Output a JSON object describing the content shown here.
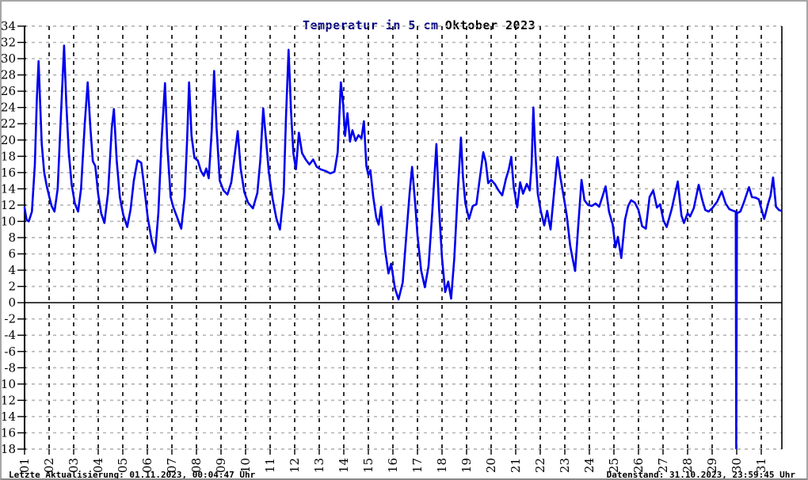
{
  "title": {
    "part1": "Temperatur in 5 cm",
    "part2": "Oktober 2023"
  },
  "footer": {
    "left": "Letzte Aktualisierung: 01.11.2023, 00:04:47 Uhr",
    "right": "Datenstand: 31.10.2023, 23:59:45 Uhr"
  },
  "colors": {
    "line": "#0000ee",
    "title_measure": "#000080",
    "title_month": "#000000",
    "h_grid": "#b8b8b8",
    "v_grid": "#000000",
    "axis": "#000000"
  },
  "chart_data": {
    "type": "line",
    "title": "Temperatur in 5 cm Oktober 2023",
    "xlabel": "",
    "ylabel": "",
    "unit": "°C",
    "ylim": [
      -18,
      34
    ],
    "xlim": [
      1,
      31.84
    ],
    "y_tick_step": 2,
    "grid": true,
    "legend": false,
    "y_ticks": [
      34,
      32,
      30,
      28,
      26,
      24,
      22,
      20,
      18,
      16,
      14,
      12,
      10,
      8,
      6,
      4,
      2,
      0,
      -2,
      -4,
      -6,
      -8,
      -10,
      -12,
      -14,
      -16,
      -18
    ],
    "x_ticks": [
      "01",
      "02",
      "03",
      "04",
      "05",
      "06",
      "07",
      "08",
      "09",
      "10",
      "11",
      "12",
      "13",
      "14",
      "15",
      "16",
      "17",
      "18",
      "19",
      "20",
      "21",
      "22",
      "23",
      "24",
      "25",
      "26",
      "27",
      "28",
      "29",
      "30",
      "31"
    ],
    "series": [
      {
        "name": "Temperatur in 5 cm",
        "points": [
          [
            1.0,
            11.7
          ],
          [
            1.08,
            10.2
          ],
          [
            1.17,
            10.0
          ],
          [
            1.3,
            11.2
          ],
          [
            1.42,
            17.0
          ],
          [
            1.5,
            25.0
          ],
          [
            1.57,
            29.7
          ],
          [
            1.63,
            25.0
          ],
          [
            1.7,
            19.5
          ],
          [
            1.8,
            16.0
          ],
          [
            1.9,
            14.4
          ],
          [
            2.0,
            13.1
          ],
          [
            2.1,
            11.9
          ],
          [
            2.22,
            11.2
          ],
          [
            2.35,
            14.0
          ],
          [
            2.48,
            23.0
          ],
          [
            2.61,
            31.6
          ],
          [
            2.7,
            24.5
          ],
          [
            2.8,
            18.5
          ],
          [
            2.92,
            14.5
          ],
          [
            3.05,
            12.2
          ],
          [
            3.18,
            11.2
          ],
          [
            3.3,
            14.0
          ],
          [
            3.45,
            22.0
          ],
          [
            3.57,
            27.1
          ],
          [
            3.68,
            21.5
          ],
          [
            3.78,
            17.4
          ],
          [
            3.88,
            16.8
          ],
          [
            4.0,
            13.3
          ],
          [
            4.12,
            11.0
          ],
          [
            4.25,
            9.8
          ],
          [
            4.4,
            13.5
          ],
          [
            4.55,
            21.5
          ],
          [
            4.64,
            23.8
          ],
          [
            4.75,
            17.5
          ],
          [
            4.88,
            13.0
          ],
          [
            5.02,
            10.8
          ],
          [
            5.18,
            9.3
          ],
          [
            5.32,
            11.5
          ],
          [
            5.45,
            15.0
          ],
          [
            5.6,
            17.5
          ],
          [
            5.75,
            17.2
          ],
          [
            5.88,
            14.0
          ],
          [
            6.02,
            10.4
          ],
          [
            6.18,
            7.6
          ],
          [
            6.32,
            6.2
          ],
          [
            6.45,
            11.0
          ],
          [
            6.58,
            20.0
          ],
          [
            6.72,
            27.0
          ],
          [
            6.82,
            19.0
          ],
          [
            6.95,
            13.0
          ],
          [
            7.05,
            11.8
          ],
          [
            7.2,
            10.6
          ],
          [
            7.38,
            9.1
          ],
          [
            7.52,
            13.0
          ],
          [
            7.62,
            20.0
          ],
          [
            7.7,
            27.1
          ],
          [
            7.8,
            20.5
          ],
          [
            7.92,
            17.8
          ],
          [
            8.05,
            17.5
          ],
          [
            8.18,
            16.2
          ],
          [
            8.3,
            15.6
          ],
          [
            8.4,
            16.5
          ],
          [
            8.5,
            15.3
          ],
          [
            8.62,
            21.0
          ],
          [
            8.72,
            28.5
          ],
          [
            8.82,
            21.5
          ],
          [
            8.95,
            15.0
          ],
          [
            9.1,
            13.8
          ],
          [
            9.26,
            13.3
          ],
          [
            9.42,
            14.8
          ],
          [
            9.55,
            18.0
          ],
          [
            9.68,
            21.1
          ],
          [
            9.8,
            16.5
          ],
          [
            9.95,
            13.6
          ],
          [
            10.1,
            12.3
          ],
          [
            10.3,
            11.6
          ],
          [
            10.48,
            13.5
          ],
          [
            10.6,
            17.5
          ],
          [
            10.72,
            23.9
          ],
          [
            10.82,
            20.5
          ],
          [
            10.95,
            16.0
          ],
          [
            11.1,
            12.8
          ],
          [
            11.25,
            10.4
          ],
          [
            11.4,
            9.0
          ],
          [
            11.55,
            13.5
          ],
          [
            11.65,
            23.0
          ],
          [
            11.75,
            31.1
          ],
          [
            11.85,
            23.5
          ],
          [
            11.95,
            18.3
          ],
          [
            12.05,
            16.4
          ],
          [
            12.17,
            20.9
          ],
          [
            12.3,
            18.4
          ],
          [
            12.45,
            17.6
          ],
          [
            12.6,
            17.0
          ],
          [
            12.75,
            17.6
          ],
          [
            12.9,
            16.7
          ],
          [
            13.05,
            16.4
          ],
          [
            13.25,
            16.2
          ],
          [
            13.45,
            15.9
          ],
          [
            13.62,
            16.1
          ],
          [
            13.75,
            18.5
          ],
          [
            13.88,
            27.1
          ],
          [
            13.97,
            24.5
          ],
          [
            14.05,
            20.5
          ],
          [
            14.15,
            23.3
          ],
          [
            14.25,
            19.8
          ],
          [
            14.35,
            21.2
          ],
          [
            14.48,
            19.9
          ],
          [
            14.6,
            20.6
          ],
          [
            14.72,
            20.2
          ],
          [
            14.82,
            22.3
          ],
          [
            14.92,
            16.8
          ],
          [
            15.0,
            15.7
          ],
          [
            15.08,
            16.3
          ],
          [
            15.2,
            13.0
          ],
          [
            15.32,
            10.5
          ],
          [
            15.42,
            9.6
          ],
          [
            15.52,
            11.8
          ],
          [
            15.68,
            6.5
          ],
          [
            15.82,
            3.6
          ],
          [
            15.93,
            4.8
          ],
          [
            16.08,
            1.8
          ],
          [
            16.23,
            0.4
          ],
          [
            16.4,
            2.5
          ],
          [
            16.55,
            8.5
          ],
          [
            16.68,
            13.5
          ],
          [
            16.78,
            16.7
          ],
          [
            16.9,
            12.5
          ],
          [
            17.0,
            8.3
          ],
          [
            17.15,
            4.0
          ],
          [
            17.3,
            1.9
          ],
          [
            17.45,
            4.5
          ],
          [
            17.6,
            11.0
          ],
          [
            17.77,
            19.5
          ],
          [
            17.88,
            11.5
          ],
          [
            18.0,
            5.5
          ],
          [
            18.13,
            1.3
          ],
          [
            18.25,
            2.6
          ],
          [
            18.37,
            0.5
          ],
          [
            18.5,
            5.5
          ],
          [
            18.65,
            14.0
          ],
          [
            18.77,
            20.3
          ],
          [
            18.85,
            15.5
          ],
          [
            18.95,
            12.2
          ],
          [
            19.1,
            10.3
          ],
          [
            19.25,
            11.9
          ],
          [
            19.4,
            12.1
          ],
          [
            19.55,
            15.5
          ],
          [
            19.68,
            18.5
          ],
          [
            19.78,
            17.3
          ],
          [
            19.88,
            14.7
          ],
          [
            20.0,
            15.1
          ],
          [
            20.15,
            14.6
          ],
          [
            20.3,
            13.8
          ],
          [
            20.45,
            13.2
          ],
          [
            20.6,
            15.2
          ],
          [
            20.72,
            16.4
          ],
          [
            20.82,
            17.9
          ],
          [
            20.92,
            14.2
          ],
          [
            21.06,
            11.7
          ],
          [
            21.18,
            14.8
          ],
          [
            21.3,
            13.4
          ],
          [
            21.45,
            14.6
          ],
          [
            21.57,
            13.8
          ],
          [
            21.65,
            17.0
          ],
          [
            21.72,
            24.0
          ],
          [
            21.8,
            18.5
          ],
          [
            21.9,
            13.4
          ],
          [
            22.02,
            11.3
          ],
          [
            22.16,
            9.5
          ],
          [
            22.28,
            11.3
          ],
          [
            22.42,
            9.0
          ],
          [
            22.56,
            13.5
          ],
          [
            22.7,
            17.9
          ],
          [
            22.82,
            15.4
          ],
          [
            22.95,
            13.1
          ],
          [
            23.08,
            10.7
          ],
          [
            23.22,
            7.0
          ],
          [
            23.32,
            5.4
          ],
          [
            23.42,
            3.9
          ],
          [
            23.55,
            9.5
          ],
          [
            23.68,
            15.1
          ],
          [
            23.8,
            12.6
          ],
          [
            23.95,
            12.0
          ],
          [
            24.1,
            11.9
          ],
          [
            24.25,
            12.2
          ],
          [
            24.4,
            11.8
          ],
          [
            24.55,
            13.2
          ],
          [
            24.66,
            14.3
          ],
          [
            24.8,
            11.2
          ],
          [
            24.95,
            9.6
          ],
          [
            25.06,
            6.8
          ],
          [
            25.16,
            8.1
          ],
          [
            25.3,
            5.5
          ],
          [
            25.45,
            10.2
          ],
          [
            25.58,
            11.9
          ],
          [
            25.7,
            12.6
          ],
          [
            25.85,
            12.3
          ],
          [
            26.0,
            11.4
          ],
          [
            26.15,
            9.4
          ],
          [
            26.3,
            9.1
          ],
          [
            26.45,
            13.0
          ],
          [
            26.6,
            13.8
          ],
          [
            26.75,
            11.7
          ],
          [
            26.88,
            12.1
          ],
          [
            27.02,
            10.1
          ],
          [
            27.15,
            9.3
          ],
          [
            27.35,
            11.5
          ],
          [
            27.6,
            14.9
          ],
          [
            27.75,
            10.7
          ],
          [
            27.85,
            9.8
          ],
          [
            28.0,
            11.0
          ],
          [
            28.1,
            10.6
          ],
          [
            28.25,
            11.6
          ],
          [
            28.45,
            14.5
          ],
          [
            28.6,
            12.6
          ],
          [
            28.72,
            11.4
          ],
          [
            28.85,
            11.2
          ],
          [
            29.0,
            11.6
          ],
          [
            29.2,
            12.4
          ],
          [
            29.39,
            13.7
          ],
          [
            29.55,
            12.2
          ],
          [
            29.7,
            11.5
          ],
          [
            29.85,
            11.3
          ],
          [
            29.96,
            11.2
          ],
          [
            29.98,
            -17.9
          ],
          [
            30.01,
            11.0
          ],
          [
            30.15,
            11.2
          ],
          [
            30.3,
            12.4
          ],
          [
            30.5,
            14.2
          ],
          [
            30.62,
            13.0
          ],
          [
            30.78,
            12.9
          ],
          [
            30.9,
            12.7
          ],
          [
            31.02,
            11.4
          ],
          [
            31.12,
            10.3
          ],
          [
            31.28,
            12.2
          ],
          [
            31.38,
            13.2
          ],
          [
            31.48,
            15.4
          ],
          [
            31.6,
            11.8
          ],
          [
            31.72,
            11.4
          ],
          [
            31.8,
            11.3
          ]
        ]
      }
    ]
  }
}
